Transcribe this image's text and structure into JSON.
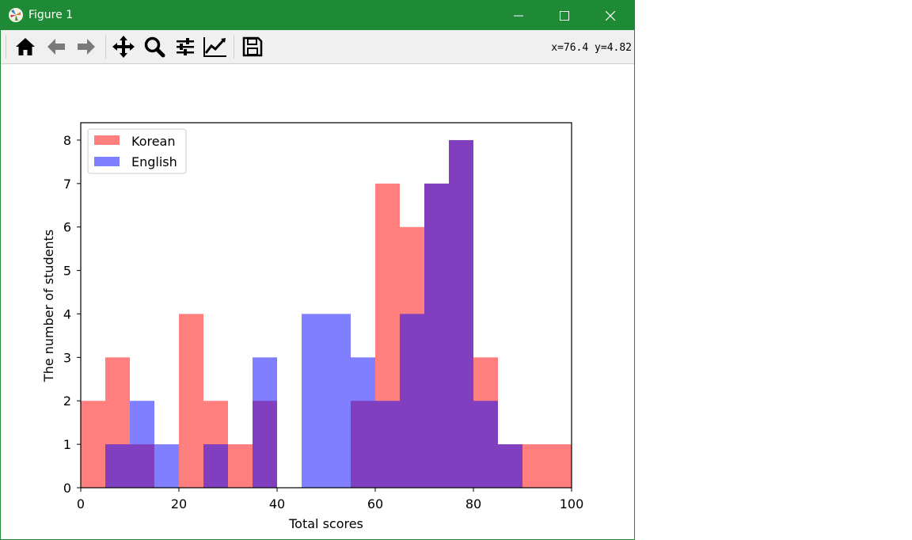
{
  "window": {
    "title": "Figure 1",
    "title_bar_color": "#1e8a35"
  },
  "toolbar": {
    "tools": [
      {
        "name": "home-icon",
        "tooltip": "Reset original view"
      },
      {
        "name": "back-arrow-icon",
        "tooltip": "Back to previous view"
      },
      {
        "name": "forward-arrow-icon",
        "tooltip": "Forward to next view"
      },
      {
        "name": "pan-icon",
        "tooltip": "Pan axes"
      },
      {
        "name": "zoom-icon",
        "tooltip": "Zoom to rectangle"
      },
      {
        "name": "subplots-config-icon",
        "tooltip": "Configure subplots"
      },
      {
        "name": "edit-axis-icon",
        "tooltip": "Edit axis, curve and image parameters"
      },
      {
        "name": "save-icon",
        "tooltip": "Save the figure"
      }
    ],
    "coordinates": "x=76.4 y=4.82"
  },
  "chart_data": {
    "type": "bar",
    "subtype": "overlapping histogram",
    "xlabel": "Total scores",
    "ylabel": "The number of students",
    "xlim": [
      0,
      100
    ],
    "ylim": [
      0,
      8.4
    ],
    "xticks": [
      0,
      20,
      40,
      60,
      80,
      100
    ],
    "yticks": [
      0,
      1,
      2,
      3,
      4,
      5,
      6,
      7,
      8
    ],
    "bin_edges": [
      0,
      5,
      10,
      15,
      20,
      25,
      30,
      35,
      40,
      45,
      50,
      55,
      60,
      65,
      70,
      75,
      80,
      85,
      90,
      95,
      100
    ],
    "legend_position": "upper left",
    "grid": false,
    "series": [
      {
        "name": "Korean",
        "color": "#ff0000",
        "alpha": 0.5,
        "counts": [
          2,
          3,
          1,
          0,
          4,
          2,
          1,
          2,
          0,
          0,
          0,
          2,
          7,
          6,
          7,
          8,
          3,
          1,
          1,
          1
        ]
      },
      {
        "name": "English",
        "color": "#0000ff",
        "alpha": 0.5,
        "counts": [
          0,
          1,
          2,
          1,
          0,
          1,
          0,
          3,
          0,
          4,
          4,
          3,
          2,
          4,
          7,
          8,
          2,
          1,
          0,
          0
        ]
      }
    ]
  }
}
